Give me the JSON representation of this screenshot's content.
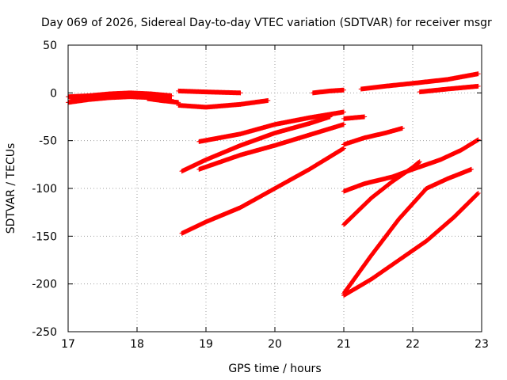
{
  "chart_data": {
    "type": "scatter",
    "title": "Day 069 of 2026, Sidereal Day-to-day VTEC variation (SDTVAR) for receiver msgr",
    "xlabel": "GPS time / hours",
    "ylabel": "SDTVAR / TECUs",
    "xlim": [
      17,
      23
    ],
    "ylim": [
      -250,
      50
    ],
    "xticks": [
      17,
      18,
      19,
      20,
      21,
      22,
      23
    ],
    "yticks": [
      -250,
      -200,
      -150,
      -100,
      -50,
      0,
      50
    ],
    "grid": true,
    "marker": "plus",
    "color": "#ff0000",
    "series": [
      {
        "name": "s01",
        "x": [
          17.0,
          17.3,
          17.6,
          17.9,
          18.2,
          18.5
        ],
        "y": [
          -4,
          -3,
          -1,
          0,
          -1,
          -3
        ]
      },
      {
        "name": "s02",
        "x": [
          17.0,
          17.3,
          17.6,
          17.9,
          18.2,
          18.5
        ],
        "y": [
          -10,
          -7,
          -5,
          -4,
          -5,
          -7
        ]
      },
      {
        "name": "s03",
        "x": [
          17.05,
          17.3,
          17.6,
          17.9,
          18.2
        ],
        "y": [
          -7,
          -5,
          -3,
          -2,
          -3
        ]
      },
      {
        "name": "s04",
        "x": [
          18.15,
          18.35,
          18.6
        ],
        "y": [
          -6,
          -8,
          -10
        ]
      },
      {
        "name": "s05",
        "x": [
          18.6,
          19.0,
          19.5
        ],
        "y": [
          2,
          1,
          0
        ]
      },
      {
        "name": "s06",
        "x": [
          18.6,
          19.0,
          19.5,
          19.9
        ],
        "y": [
          -13,
          -15,
          -12,
          -8
        ]
      },
      {
        "name": "s07",
        "x": [
          18.9,
          19.5,
          20.0,
          20.5,
          21.0
        ],
        "y": [
          -51,
          -43,
          -33,
          -26,
          -20
        ]
      },
      {
        "name": "s08",
        "x": [
          18.65,
          19.0,
          19.5,
          20.0,
          20.5,
          20.8
        ],
        "y": [
          -82,
          -70,
          -55,
          -42,
          -32,
          -25
        ]
      },
      {
        "name": "s09",
        "x": [
          18.9,
          19.5,
          20.0,
          20.5,
          21.0
        ],
        "y": [
          -80,
          -65,
          -55,
          -44,
          -33
        ]
      },
      {
        "name": "s10",
        "x": [
          18.65,
          19.0,
          19.5,
          20.0,
          20.5,
          21.0
        ],
        "y": [
          -147,
          -135,
          -120,
          -100,
          -80,
          -58
        ]
      },
      {
        "name": "s11",
        "x": [
          20.55,
          20.8,
          21.0
        ],
        "y": [
          0,
          2,
          3
        ]
      },
      {
        "name": "s12",
        "x": [
          21.0,
          21.3
        ],
        "y": [
          -27,
          -25
        ]
      },
      {
        "name": "s13",
        "x": [
          21.25,
          21.6,
          22.0,
          22.5,
          22.95
        ],
        "y": [
          4,
          7,
          10,
          14,
          20
        ]
      },
      {
        "name": "s14",
        "x": [
          22.1,
          22.5,
          22.95
        ],
        "y": [
          1,
          4,
          7
        ]
      },
      {
        "name": "s15",
        "x": [
          21.0,
          21.3,
          21.6,
          21.85
        ],
        "y": [
          -54,
          -47,
          -42,
          -37
        ]
      },
      {
        "name": "s16",
        "x": [
          21.0,
          21.3,
          21.7,
          22.0,
          22.4,
          22.7,
          22.95
        ],
        "y": [
          -103,
          -95,
          -88,
          -80,
          -70,
          -60,
          -49
        ]
      },
      {
        "name": "s17",
        "x": [
          21.0,
          21.4,
          21.7,
          22.0,
          22.1
        ],
        "y": [
          -138,
          -110,
          -93,
          -78,
          -72
        ]
      },
      {
        "name": "s18",
        "x": [
          21.0,
          21.4,
          21.8,
          22.2,
          22.5,
          22.85
        ],
        "y": [
          -210,
          -170,
          -132,
          -100,
          -90,
          -80
        ]
      },
      {
        "name": "s19",
        "x": [
          21.0,
          21.4,
          21.8,
          22.2,
          22.6,
          22.95
        ],
        "y": [
          -212,
          -195,
          -175,
          -155,
          -130,
          -105
        ]
      }
    ]
  }
}
